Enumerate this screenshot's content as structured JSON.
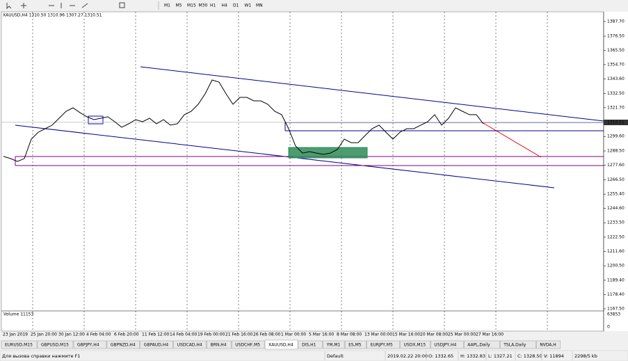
{
  "toolbar": {
    "timeframes": [
      "M1",
      "M5",
      "M15",
      "M30",
      "H1",
      "H4",
      "D1",
      "W1",
      "MN"
    ]
  },
  "chart": {
    "header": "XAUUSD,H4  1310.50 1310.96 1307.27 1310.51",
    "price_ticks": [
      {
        "value": 1387.7,
        "label": "1387.70"
      },
      {
        "value": 1376.5,
        "label": "1376.50"
      },
      {
        "value": 1365.5,
        "label": "1365.50"
      },
      {
        "value": 1354.7,
        "label": "1354.70"
      },
      {
        "value": 1343.6,
        "label": "1343.60"
      },
      {
        "value": 1332.5,
        "label": "1332.50"
      },
      {
        "value": 1321.7,
        "label": "1321.70"
      },
      {
        "value": 1299.6,
        "label": "1299.60"
      },
      {
        "value": 1288.5,
        "label": "1288.50"
      },
      {
        "value": 1277.6,
        "label": "1277.60"
      },
      {
        "value": 1266.5,
        "label": "1266.50"
      },
      {
        "value": 1255.4,
        "label": "1255.40"
      },
      {
        "value": 1244.6,
        "label": "1244.60"
      },
      {
        "value": 1233.5,
        "label": "1233.50"
      },
      {
        "value": 1222.5,
        "label": "1222.50"
      },
      {
        "value": 1211.6,
        "label": "1211.60"
      },
      {
        "value": 1200.5,
        "label": "1200.50"
      },
      {
        "value": 1189.4,
        "label": "1189.40"
      },
      {
        "value": 1178.4,
        "label": "1178.40"
      },
      {
        "value": 1167.5,
        "label": "1167.50"
      }
    ],
    "current_price": 1310.51,
    "time_labels": [
      "23 Jan 2019",
      "25 Jan 20:00",
      "30 Jan 12:00",
      "4 Feb 04:00",
      "6 Feb 20:00",
      "11 Feb 12:00",
      "14 Feb 04:00",
      "19 Feb 00:00",
      "21 Feb 16:00",
      "26 Feb 08:00",
      "1 Mar 00:00",
      "5 Mar 16:00",
      "8 Mar 08:00",
      "13 Mar 00:00",
      "15 Mar 16:00",
      "20 Mar 08:00",
      "25 Mar 00:00",
      "27 Mar 16:00"
    ],
    "closes": [
      1284.3,
      1282.7,
      1280.5,
      1282.7,
      1297.6,
      1302.9,
      1305.6,
      1308.3,
      1313.6,
      1318.9,
      1321.6,
      1317.9,
      1314.7,
      1312.5,
      1313.6,
      1314.7,
      1310.9,
      1306.7,
      1309.3,
      1312.5,
      1310.9,
      1313.6,
      1309.3,
      1312.5,
      1308.3,
      1309.3,
      1316.3,
      1318.9,
      1324.3,
      1332.3,
      1342.9,
      1341.3,
      1332.3,
      1324.3,
      1329.6,
      1329.6,
      1326.9,
      1326.9,
      1324.3,
      1318.9,
      1316.3,
      1305.6,
      1292.3,
      1286.9,
      1288.0,
      1286.9,
      1285.9,
      1286.9,
      1289.6,
      1297.6,
      1294.9,
      1294.9,
      1300.3,
      1305.6,
      1308.3,
      1302.9,
      1297.6,
      1302.9,
      1305.6,
      1305.6,
      1308.3,
      1310.9,
      1316.3,
      1308.3,
      1313.6,
      1321.6,
      1318.9,
      1316.3,
      1316.3,
      1309.3
    ],
    "volume_label": "Volume 11153",
    "volume_max": "63853",
    "volume_zero": "0"
  },
  "tabs": [
    "EURUSD,M15",
    "GBPUSD,M15",
    "GBPJPY,H4",
    "GBPNZD,H4",
    "GBPAUD,H4",
    "USDCAD,H4",
    "BRN,H4",
    "USDCHF,M5",
    "XAUUSD,H4",
    "DIS,H1",
    "YM,M1",
    "ES,M5",
    "EURJPY,M5",
    "USDX,M15",
    "USDJPY,H4",
    "AAPL,Daily",
    "TSLA,Daily",
    "NVDA,H"
  ],
  "active_tab": "XAUUSD,H4",
  "status": {
    "help": "Для вызова справки нажмите F1",
    "profile": "Default",
    "time": "2019.02.22 20:00",
    "open": "O: 1332.65",
    "high": "H: 1332.83",
    "low": "L: 1327.21",
    "close": "C: 1328.50",
    "volume": "V: 11894",
    "traffic": "2298/5 kb"
  }
}
